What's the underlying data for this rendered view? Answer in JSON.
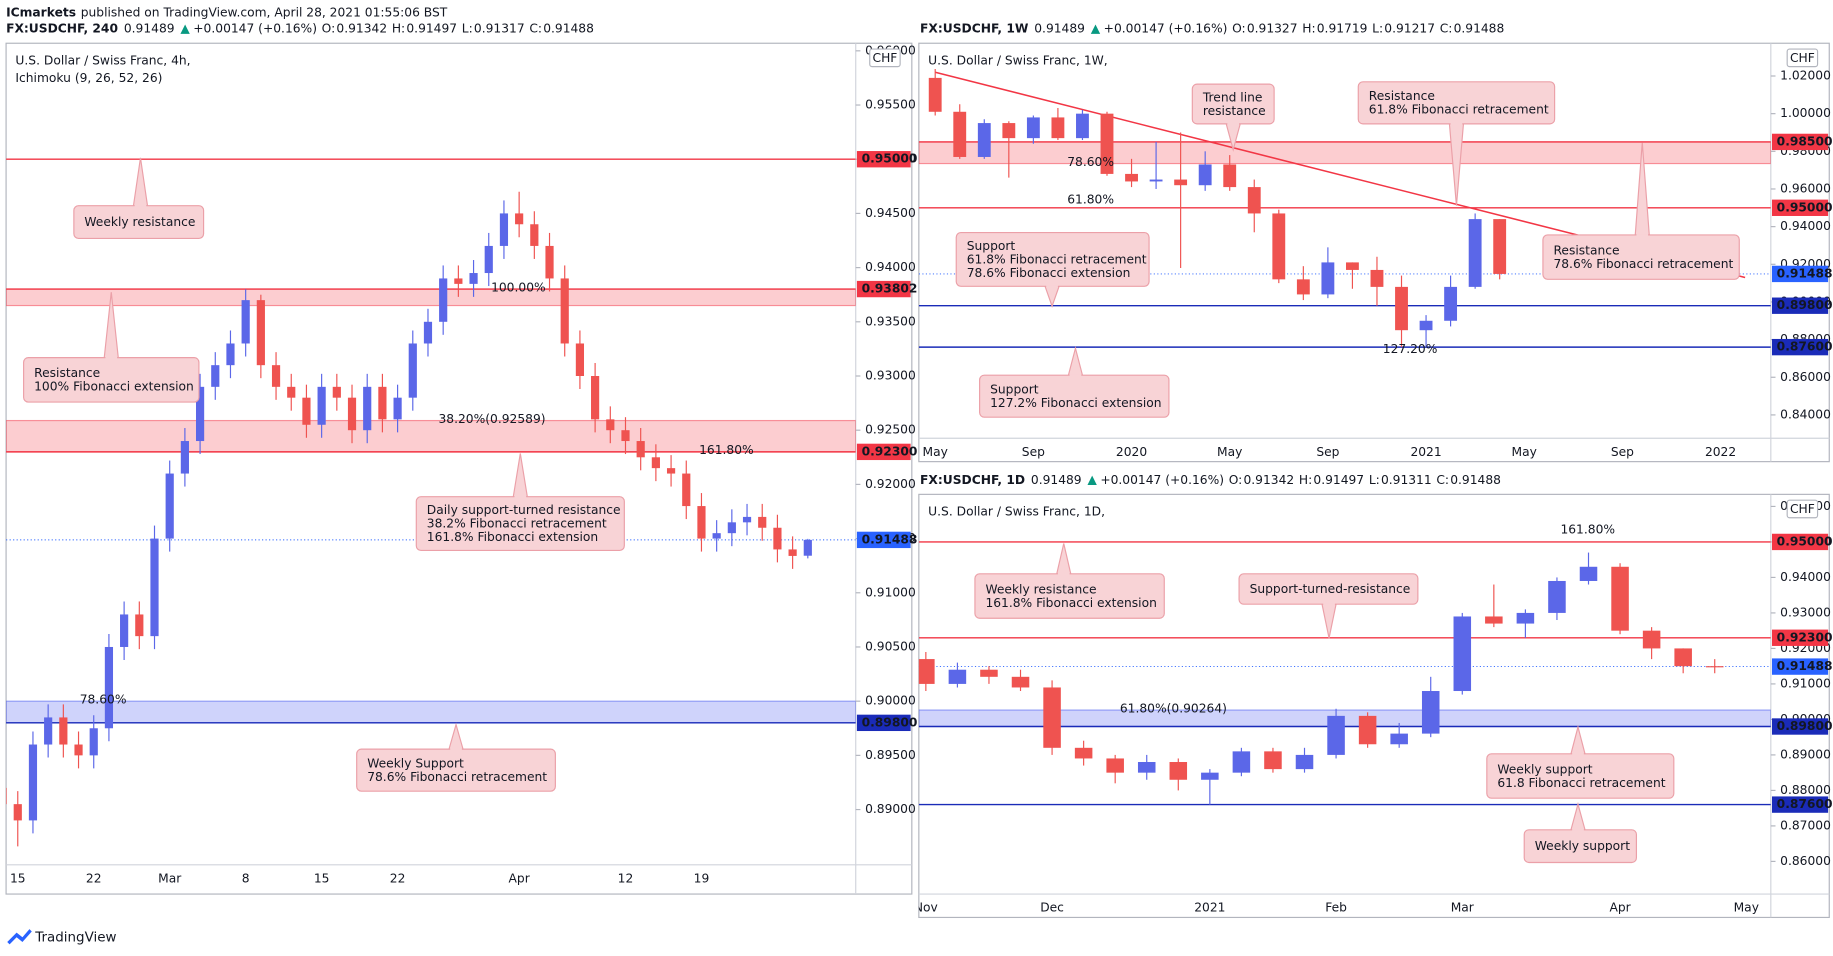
{
  "publisher": {
    "name": "ICmarkets",
    "text": "published on TradingView.com, April 28, 2021 01:55:06 BST"
  },
  "footer": {
    "brand": "TradingView"
  },
  "chart_data": [
    {
      "type": "candlestick",
      "header": {
        "symbol": "FX:USDCHF, 240",
        "price": "0.91489",
        "change": "+0.00147 (+0.16%)",
        "change_color": "#089981",
        "fields": [
          {
            "key": "O:",
            "value": "0.91342"
          },
          {
            "key": "H:",
            "value": "0.91497"
          },
          {
            "key": "L:",
            "value": "0.91317"
          },
          {
            "key": "C:",
            "value": "0.91488"
          }
        ]
      },
      "title": "U.S. Dollar / Swiss Franc, 4h,",
      "indicator": "Ichimoku (9, 26, 52, 26)",
      "currency": "CHF",
      "categories": [
        null,
        "15",
        null,
        null,
        null,
        null,
        "22",
        null,
        null,
        null,
        null,
        "Mar",
        null,
        null,
        null,
        null,
        "8",
        null,
        null,
        null,
        null,
        "15",
        null,
        null,
        null,
        null,
        "22",
        null,
        null,
        null,
        null,
        null,
        null,
        null,
        "Apr",
        null,
        null,
        null,
        null,
        null,
        null,
        "12",
        null,
        null,
        null,
        null,
        "19",
        null,
        null,
        null,
        null,
        null,
        null,
        null
      ],
      "open": [
        0.892,
        0.8905,
        0.889,
        0.896,
        0.8985,
        0.896,
        0.895,
        0.8975,
        0.905,
        0.908,
        0.906,
        0.915,
        0.921,
        0.924,
        0.929,
        0.931,
        0.933,
        0.937,
        0.931,
        0.929,
        0.928,
        0.9255,
        0.929,
        0.928,
        0.925,
        0.929,
        0.926,
        0.928,
        0.933,
        0.935,
        0.939,
        0.9385,
        0.9395,
        0.942,
        0.945,
        0.944,
        0.942,
        0.939,
        0.933,
        0.93,
        0.926,
        0.925,
        0.924,
        0.9225,
        0.9215,
        0.921,
        0.918,
        0.915,
        0.9155,
        0.9165,
        0.917,
        0.916,
        0.914,
        0.91342
      ],
      "high": [
        0.8932,
        0.8917,
        0.8972,
        0.8997,
        0.8997,
        0.8972,
        0.8987,
        0.9062,
        0.9092,
        0.9092,
        0.9162,
        0.9222,
        0.9252,
        0.9302,
        0.9322,
        0.9342,
        0.938,
        0.9375,
        0.9322,
        0.9302,
        0.9292,
        0.9302,
        0.9302,
        0.9292,
        0.9302,
        0.9302,
        0.9292,
        0.9342,
        0.9362,
        0.9402,
        0.9402,
        0.9407,
        0.9432,
        0.9462,
        0.947,
        0.9452,
        0.9432,
        0.9402,
        0.9342,
        0.9312,
        0.9272,
        0.9262,
        0.9252,
        0.9237,
        0.9227,
        0.9222,
        0.9192,
        0.9167,
        0.9177,
        0.9182,
        0.9182,
        0.9172,
        0.9152,
        0.91497
      ],
      "low": [
        0.8893,
        0.8866,
        0.8878,
        0.8948,
        0.8948,
        0.8938,
        0.8938,
        0.8963,
        0.9038,
        0.9048,
        0.9048,
        0.9138,
        0.9198,
        0.9228,
        0.9278,
        0.9298,
        0.9318,
        0.9298,
        0.9278,
        0.9268,
        0.9243,
        0.9243,
        0.9268,
        0.9238,
        0.9238,
        0.9248,
        0.9248,
        0.9268,
        0.9318,
        0.9338,
        0.9373,
        0.9373,
        0.9383,
        0.9408,
        0.9428,
        0.9408,
        0.9378,
        0.9318,
        0.9288,
        0.9248,
        0.9238,
        0.9228,
        0.9213,
        0.9203,
        0.9198,
        0.9168,
        0.9138,
        0.9138,
        0.9143,
        0.9153,
        0.9148,
        0.9128,
        0.9122,
        0.91317
      ],
      "close": [
        0.8905,
        0.889,
        0.896,
        0.8985,
        0.896,
        0.895,
        0.8975,
        0.905,
        0.908,
        0.906,
        0.915,
        0.921,
        0.924,
        0.929,
        0.931,
        0.933,
        0.937,
        0.931,
        0.929,
        0.928,
        0.9255,
        0.929,
        0.928,
        0.925,
        0.929,
        0.926,
        0.928,
        0.933,
        0.935,
        0.939,
        0.9385,
        0.9395,
        0.942,
        0.945,
        0.944,
        0.942,
        0.939,
        0.933,
        0.93,
        0.926,
        0.925,
        0.924,
        0.9225,
        0.9215,
        0.921,
        0.918,
        0.915,
        0.9155,
        0.9165,
        0.917,
        0.916,
        0.914,
        0.9134,
        0.91488
      ],
      "up_color": "#5b67e8",
      "down_color": "#ef5350",
      "ylim": [
        0.8849,
        0.9607
      ],
      "yticks": [
        {
          "value": 0.89,
          "label": "0.89000"
        },
        {
          "value": 0.895,
          "label": "0.89500"
        },
        {
          "value": 0.9,
          "label": "0.90000"
        },
        {
          "value": 0.905,
          "label": "0.90500"
        },
        {
          "value": 0.91,
          "label": "0.91000"
        },
        {
          "value": 0.915,
          "label": "0.91500"
        },
        {
          "value": 0.92,
          "label": "0.92000"
        },
        {
          "value": 0.925,
          "label": "0.92500"
        },
        {
          "value": 0.93,
          "label": "0.93000"
        },
        {
          "value": 0.935,
          "label": "0.93500"
        },
        {
          "value": 0.94,
          "label": "0.94000"
        },
        {
          "value": 0.945,
          "label": "0.94500"
        },
        {
          "value": 0.95,
          "label": "0.95000"
        },
        {
          "value": 0.955,
          "label": "0.95500"
        },
        {
          "value": 0.96,
          "label": "0.96000"
        }
      ],
      "levels": [
        {
          "value": 0.95,
          "label": "0.95000",
          "color": "#f23645"
        },
        {
          "value": 0.93802,
          "label": "0.93802",
          "color": "#f23645"
        },
        {
          "value": 0.923,
          "label": "0.92300",
          "color": "#f23645"
        },
        {
          "value": 0.91488,
          "label": "0.91488",
          "color": "#2962ff",
          "style": "dotted"
        },
        {
          "value": 0.898,
          "label": "0.89800",
          "color": "#1a2bb8"
        }
      ],
      "zones": [
        {
          "from": 0.9365,
          "to": 0.93802,
          "color": "#f23645"
        },
        {
          "from": 0.923,
          "to": 0.92589,
          "color": "#f23645"
        },
        {
          "from": 0.898,
          "to": 0.9,
          "color": "#3f51f0"
        }
      ],
      "fib_labels": [
        {
          "label": "100.00%",
          "value": 0.938,
          "color": "#3d5bd9"
        },
        {
          "label": "38.20%(0.92589)",
          "value": 0.92589,
          "color": "#3d5bd9"
        },
        {
          "label": "161.80%",
          "value": 0.923,
          "color": "#3d5bd9"
        },
        {
          "label": "78.60%",
          "value": 0.9,
          "color": "#3d5bd9"
        }
      ],
      "annotations": [
        {
          "lines": [
            "Weekly resistance"
          ]
        },
        {
          "lines": [
            "Resistance",
            "100% Fibonacci extension"
          ]
        },
        {
          "lines": [
            "Daily support-turned resistance",
            "38.2% Fibonacci retracement",
            "161.8% Fibonacci extension"
          ]
        },
        {
          "lines": [
            "Weekly Support",
            "78.6% Fibonacci retracement"
          ]
        }
      ]
    },
    {
      "type": "candlestick",
      "header": {
        "symbol": "FX:USDCHF, 1W",
        "price": "0.91489",
        "change": "+0.00147 (+0.16%)",
        "change_color": "#089981",
        "fields": [
          {
            "key": "O:",
            "value": "0.91327"
          },
          {
            "key": "H:",
            "value": "0.91719"
          },
          {
            "key": "L:",
            "value": "0.91217"
          },
          {
            "key": "C:",
            "value": "0.91488"
          }
        ]
      },
      "title": "U.S. Dollar / Swiss Franc, 1W,",
      "currency": "CHF",
      "categories": [
        "May",
        null,
        null,
        null,
        "Sep",
        null,
        null,
        null,
        "2020",
        null,
        null,
        null,
        "May",
        null,
        null,
        null,
        "Sep",
        null,
        null,
        null,
        "2021",
        null,
        null,
        null,
        "May",
        null,
        null,
        null,
        "Sep",
        null,
        null,
        null,
        "2022",
        null
      ],
      "open": [
        1.019,
        1.001,
        0.977,
        0.995,
        0.987,
        0.998,
        0.987,
        1.0,
        0.968,
        0.964,
        0.965,
        0.962,
        0.973,
        0.961,
        0.947,
        0.912,
        0.904,
        0.921,
        0.917,
        0.908,
        0.885,
        0.89,
        0.908,
        0.944,
        null,
        null,
        null,
        null,
        null,
        null,
        null,
        null,
        null,
        null
      ],
      "high": [
        1.0237,
        1.005,
        0.997,
        0.996,
        0.999,
        1.003,
        1.002,
        1.001,
        0.976,
        0.985,
        0.99,
        0.98,
        0.978,
        0.965,
        0.949,
        0.919,
        0.929,
        0.921,
        0.924,
        0.914,
        0.893,
        0.914,
        0.947,
        0.944,
        null,
        null,
        null,
        null,
        null,
        null,
        null,
        null,
        null,
        null
      ],
      "low": [
        0.999,
        0.976,
        0.976,
        0.966,
        0.984,
        0.986,
        0.986,
        0.967,
        0.961,
        0.96,
        0.918,
        0.959,
        0.959,
        0.937,
        0.91,
        0.901,
        0.902,
        0.907,
        0.898,
        0.876,
        0.876,
        0.887,
        0.907,
        0.912,
        null,
        null,
        null,
        null,
        null,
        null,
        null,
        null,
        null,
        null
      ],
      "close": [
        1.001,
        0.977,
        0.995,
        0.987,
        0.998,
        0.987,
        1.0,
        0.968,
        0.964,
        0.965,
        0.962,
        0.973,
        0.961,
        0.947,
        0.912,
        0.904,
        0.921,
        0.917,
        0.908,
        0.885,
        0.89,
        0.908,
        0.944,
        0.91488,
        null,
        null,
        null,
        null,
        null,
        null,
        null,
        null,
        null,
        null
      ],
      "up_color": "#5b67e8",
      "down_color": "#ef5350",
      "ylim": [
        0.8276,
        1.0374
      ],
      "yticks": [
        {
          "value": 0.84,
          "label": "0.84000"
        },
        {
          "value": 0.86,
          "label": "0.86000"
        },
        {
          "value": 0.88,
          "label": "0.88000"
        },
        {
          "value": 0.9,
          "label": "0.90000"
        },
        {
          "value": 0.92,
          "label": "0.92000"
        },
        {
          "value": 0.94,
          "label": "0.94000"
        },
        {
          "value": 0.96,
          "label": "0.96000"
        },
        {
          "value": 0.98,
          "label": "0.98000"
        },
        {
          "value": 1,
          "label": "1.00000"
        },
        {
          "value": 1.02,
          "label": "1.02000"
        }
      ],
      "levels": [
        {
          "value": 0.985,
          "label": "0.98500",
          "color": "#f23645"
        },
        {
          "value": 0.95,
          "label": "0.95000",
          "color": "#f23645"
        },
        {
          "value": 0.91488,
          "label": "0.91488",
          "color": "#2962ff",
          "style": "dotted"
        },
        {
          "value": 0.898,
          "label": "0.89800",
          "color": "#1a2bb8"
        },
        {
          "value": 0.876,
          "label": "0.87600",
          "color": "#1a2bb8"
        }
      ],
      "zones": [
        {
          "from": 0.9735,
          "to": 0.985,
          "color": "#f23645"
        }
      ],
      "trendline": {
        "start_index": 0,
        "start": 1.022,
        "end_index": 33,
        "end": 0.913,
        "color": "#f23645"
      },
      "fib_labels": [
        {
          "label": "78.60%",
          "value": 0.9735,
          "color": "#3d5bd9"
        },
        {
          "label": "61.80%",
          "value": 0.9535,
          "color": "#b8860b"
        },
        {
          "label": "127.20%",
          "value": 0.874,
          "color": "#3d5bd9"
        }
      ],
      "annotations": [
        {
          "lines": [
            "Trend line",
            "resistance"
          ]
        },
        {
          "lines": [
            "Resistance",
            "61.8% Fibonacci retracement"
          ]
        },
        {
          "lines": [
            "Resistance",
            "78.6% Fibonacci retracement"
          ]
        },
        {
          "lines": [
            "Support",
            "61.8% Fibonacci retracement",
            "78.6% Fibonacci extension"
          ]
        },
        {
          "lines": [
            "Support",
            "127.2% Fibonacci extension"
          ]
        }
      ]
    },
    {
      "type": "candlestick",
      "header": {
        "symbol": "FX:USDCHF, 1D",
        "price": "0.91489",
        "change": "+0.00147 (+0.16%)",
        "change_color": "#089981",
        "fields": [
          {
            "key": "O:",
            "value": "0.91342"
          },
          {
            "key": "H:",
            "value": "0.91497"
          },
          {
            "key": "L:",
            "value": "0.91311"
          },
          {
            "key": "C:",
            "value": "0.91488"
          }
        ]
      },
      "title": "U.S. Dollar / Swiss Franc, 1D,",
      "currency": "CHF",
      "categories": [
        "Nov",
        null,
        null,
        null,
        "Dec",
        null,
        null,
        null,
        null,
        "2021",
        null,
        null,
        null,
        "Feb",
        null,
        null,
        null,
        "Mar",
        null,
        null,
        null,
        null,
        "Apr",
        null,
        null,
        null,
        "May"
      ],
      "open": [
        0.917,
        0.91,
        0.914,
        0.912,
        0.909,
        0.892,
        0.889,
        0.885,
        0.888,
        0.883,
        0.885,
        0.891,
        0.886,
        0.89,
        0.901,
        0.893,
        0.896,
        0.908,
        0.929,
        0.927,
        0.93,
        0.939,
        0.943,
        0.925,
        0.92,
        0.915,
        null
      ],
      "high": [
        0.919,
        0.916,
        0.915,
        0.914,
        0.911,
        0.894,
        0.89,
        0.89,
        0.889,
        0.886,
        0.892,
        0.892,
        0.892,
        0.903,
        0.902,
        0.899,
        0.912,
        0.93,
        0.938,
        0.931,
        0.94,
        0.947,
        0.944,
        0.926,
        0.92,
        0.917,
        null
      ],
      "low": [
        0.908,
        0.909,
        0.91,
        0.908,
        0.89,
        0.887,
        0.882,
        0.883,
        0.88,
        0.876,
        0.884,
        0.885,
        0.885,
        0.889,
        0.892,
        0.892,
        0.895,
        0.907,
        0.926,
        0.923,
        0.928,
        0.938,
        0.924,
        0.917,
        0.913,
        0.913,
        null
      ],
      "close": [
        0.91,
        0.914,
        0.912,
        0.909,
        0.892,
        0.889,
        0.885,
        0.888,
        0.883,
        0.885,
        0.891,
        0.886,
        0.89,
        0.901,
        0.893,
        0.896,
        0.908,
        0.929,
        0.927,
        0.93,
        0.939,
        0.943,
        0.925,
        0.92,
        0.915,
        0.91488,
        null
      ],
      "up_color": "#5b67e8",
      "down_color": "#ef5350",
      "ylim": [
        0.8508,
        0.9634
      ],
      "yticks": [
        {
          "value": 0.86,
          "label": "0.86000"
        },
        {
          "value": 0.87,
          "label": "0.87000"
        },
        {
          "value": 0.88,
          "label": "0.88000"
        },
        {
          "value": 0.89,
          "label": "0.89000"
        },
        {
          "value": 0.9,
          "label": "0.90000"
        },
        {
          "value": 0.91,
          "label": "0.91000"
        },
        {
          "value": 0.92,
          "label": "0.92000"
        },
        {
          "value": 0.93,
          "label": "0.93000"
        },
        {
          "value": 0.94,
          "label": "0.94000"
        },
        {
          "value": 0.95,
          "label": "0.95000"
        },
        {
          "value": 0.96,
          "label": "0.96000"
        }
      ],
      "levels": [
        {
          "value": 0.95,
          "label": "0.95000",
          "color": "#f23645"
        },
        {
          "value": 0.923,
          "label": "0.92300",
          "color": "#f23645"
        },
        {
          "value": 0.91488,
          "label": "0.91488",
          "color": "#2962ff",
          "style": "dotted"
        },
        {
          "value": 0.898,
          "label": "0.89800",
          "color": "#1a2bb8"
        },
        {
          "value": 0.876,
          "label": "0.87600",
          "color": "#1a2bb8"
        }
      ],
      "zones": [
        {
          "from": 0.898,
          "to": 0.90264,
          "color": "#3f51f0"
        }
      ],
      "fib_labels": [
        {
          "label": "161.80%",
          "value": 0.9531,
          "color": "#3d5bd9"
        },
        {
          "label": "61.80%(0.90264)",
          "value": 0.90264,
          "color": "#b8860b"
        }
      ],
      "annotations": [
        {
          "lines": [
            "Weekly resistance",
            "161.8% Fibonacci extension"
          ]
        },
        {
          "lines": [
            "Support-turned-resistance"
          ]
        },
        {
          "lines": [
            "Weekly support",
            "61.8 Fibonacci retracement"
          ]
        },
        {
          "lines": [
            "Weekly support"
          ]
        }
      ]
    }
  ]
}
